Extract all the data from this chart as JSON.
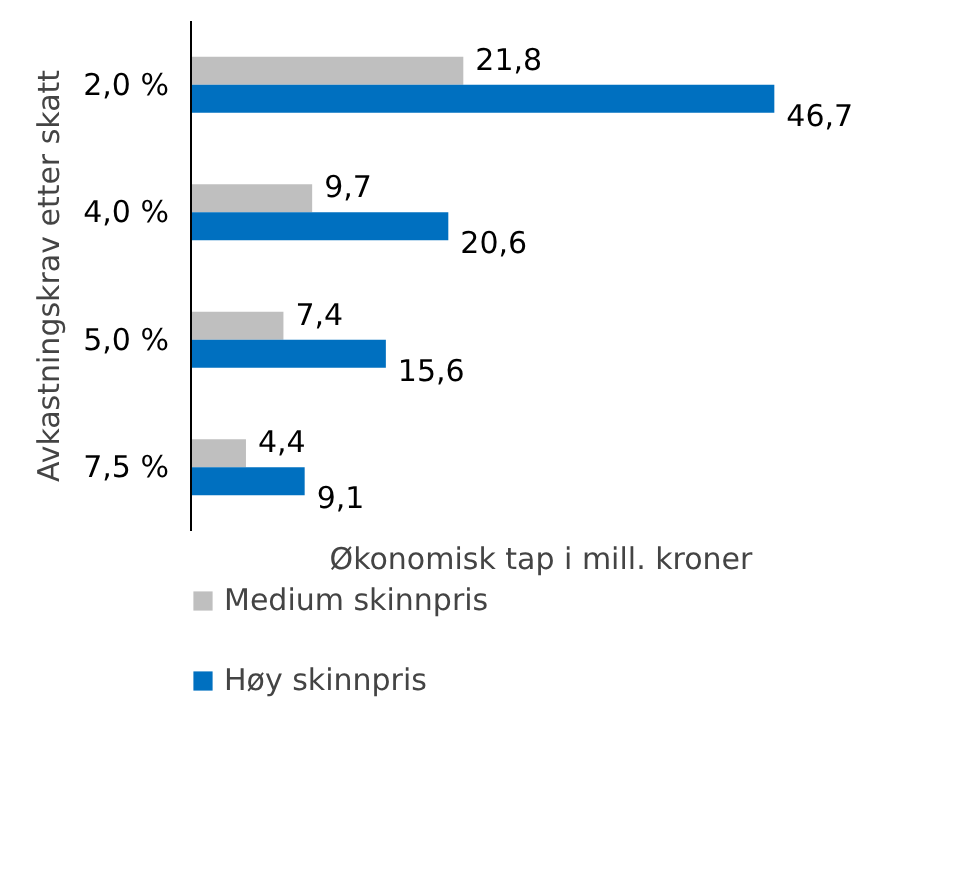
{
  "chart_data": {
    "type": "bar",
    "orientation": "horizontal",
    "ylabel": "Avkastningskrav etter skatt",
    "xlabel": "Økonomisk tap i mill. kroner",
    "categories": [
      "2,0 %",
      "4,0 %",
      "5,0 %",
      "7,5 %"
    ],
    "series": [
      {
        "name": "Medium skinnpris",
        "color": "#bfbfbf",
        "values": [
          21.8,
          9.7,
          7.4,
          4.4
        ],
        "value_labels": [
          "21,8",
          "9,7",
          "7,4",
          "4,4"
        ]
      },
      {
        "name": "Høy skinnpris",
        "color": "#0070c0",
        "values": [
          46.7,
          20.6,
          15.6,
          9.1
        ],
        "value_labels": [
          "46,7",
          "20,6",
          "15,6",
          "9,1"
        ]
      }
    ],
    "legend": "bottom"
  }
}
